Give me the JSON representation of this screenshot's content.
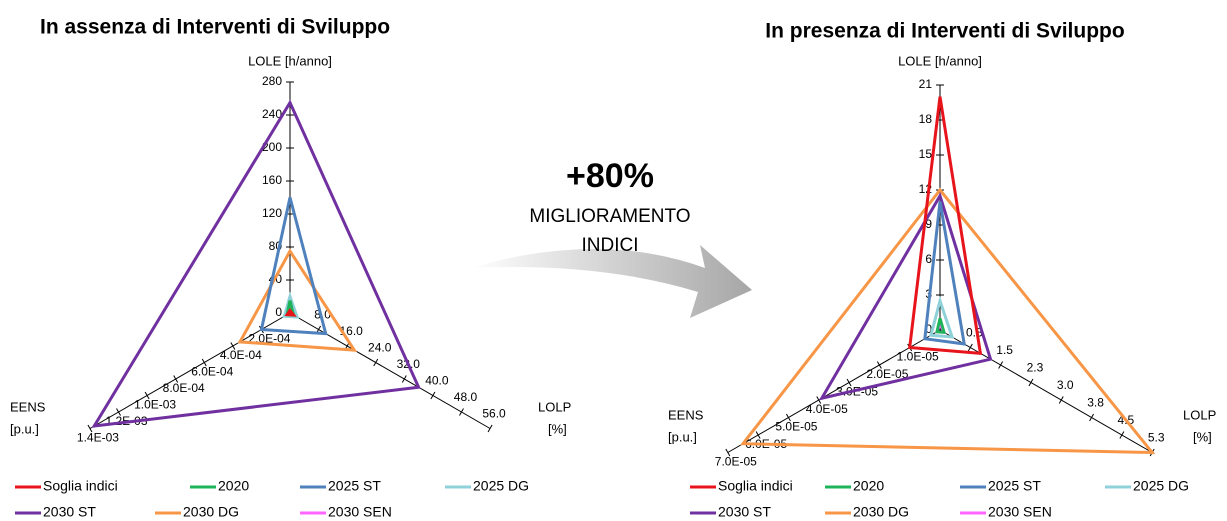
{
  "chart_data": [
    {
      "type": "radar",
      "title": "In assenza di Interventi di Sviluppo",
      "axes": [
        {
          "label": [
            "LOLE [h/anno]"
          ],
          "lim": [
            0,
            280
          ],
          "ticks": [
            0,
            40,
            80,
            120,
            160,
            200,
            240,
            280
          ]
        },
        {
          "label": [
            "LOLP",
            "[%]"
          ],
          "lim": [
            0,
            56
          ],
          "ticks": [
            {
              "value": 8,
              "label": "8.0"
            },
            {
              "value": 16,
              "label": "16.0"
            },
            {
              "value": 24,
              "label": "24.0"
            },
            {
              "value": 32,
              "label": "32.0"
            },
            {
              "value": 40,
              "label": "40.0"
            },
            {
              "value": 48,
              "label": "48.0"
            },
            {
              "value": 56,
              "label": "56.0"
            }
          ]
        },
        {
          "label": [
            "EENS",
            "[p.u.]"
          ],
          "lim": [
            0,
            0.0014
          ],
          "ticks": [
            {
              "value": 0.0002,
              "label": "2.0E-04"
            },
            {
              "value": 0.0004,
              "label": "4.0E-04"
            },
            {
              "value": 0.0006,
              "label": "6.0E-04"
            },
            {
              "value": 0.0008,
              "label": "8.0E-04"
            },
            {
              "value": 0.001,
              "label": "1.0E-03"
            },
            {
              "value": 0.0012,
              "label": "1.2E-03"
            },
            {
              "value": 0.0014,
              "label": "1.4E-03"
            }
          ]
        }
      ],
      "series": [
        {
          "name": "Soglia indici",
          "color": "#e8141c",
          "values": [
            3,
            1,
            2e-05
          ]
        },
        {
          "name": "2020",
          "color": "#1fb45a",
          "values": [
            15,
            1,
            2e-05
          ]
        },
        {
          "name": "2025 ST",
          "color": "#4f81bd",
          "values": [
            140,
            10,
            0.0002
          ]
        },
        {
          "name": "2025 DG",
          "color": "#8fd1d8",
          "values": [
            20,
            2,
            4e-05
          ]
        },
        {
          "name": "2030 ST",
          "color": "#7030a0",
          "values": [
            255,
            36,
            0.00137
          ]
        },
        {
          "name": "2030 DG",
          "color": "#f79646",
          "values": [
            75,
            18,
            0.00035
          ]
        },
        {
          "name": "2030 SEN",
          "color": "#ff66ff",
          "values": [
            8,
            1.5,
            3e-05
          ]
        }
      ]
    },
    {
      "type": "radar",
      "title": "In presenza di Interventi di Sviluppo",
      "axes": [
        {
          "label": [
            "LOLE [h/anno]"
          ],
          "lim": [
            0,
            21
          ],
          "ticks": [
            0,
            3,
            6,
            9,
            12,
            15,
            18,
            21
          ]
        },
        {
          "label": [
            "LOLP",
            "[%]"
          ],
          "lim": [
            0,
            5.25
          ],
          "ticks": [
            {
              "value": 0.75,
              "label": "0.8"
            },
            1.5,
            {
              "value": 2.25,
              "label": "2.3"
            },
            {
              "value": 3,
              "label": "3.0"
            },
            {
              "value": 3.75,
              "label": "3.8"
            },
            4.5,
            {
              "value": 5.25,
              "label": "5.3"
            }
          ]
        },
        {
          "label": [
            "EENS",
            "[p.u.]"
          ],
          "lim": [
            0,
            7e-05
          ],
          "ticks": [
            {
              "value": 1e-05,
              "label": "1.0E-05"
            },
            {
              "value": 2e-05,
              "label": "2.0E-05"
            },
            {
              "value": 3e-05,
              "label": "3.0E-05"
            },
            {
              "value": 4e-05,
              "label": "4.0E-05"
            },
            {
              "value": 5e-05,
              "label": "5.0E-05"
            },
            {
              "value": 6e-05,
              "label": "6.0E-05"
            },
            {
              "value": 7e-05,
              "label": "7.0E-05"
            }
          ]
        }
      ],
      "series": [
        {
          "name": "Soglia indici",
          "color": "#e8141c",
          "values": [
            20,
            1,
            1e-05
          ]
        },
        {
          "name": "2020",
          "color": "#1fb45a",
          "values": [
            1,
            0.1,
            1e-06
          ]
        },
        {
          "name": "2025 ST",
          "color": "#4f81bd",
          "values": [
            11,
            0.6,
            5e-06
          ]
        },
        {
          "name": "2025 DG",
          "color": "#8fd1d8",
          "values": [
            2.5,
            0.3,
            3e-06
          ]
        },
        {
          "name": "2030 ST",
          "color": "#7030a0",
          "values": [
            11.5,
            1.25,
            3.9e-05
          ]
        },
        {
          "name": "2030 DG",
          "color": "#f79646",
          "values": [
            12,
            5.25,
            6.5e-05
          ]
        },
        {
          "name": "2030 SEN",
          "color": "#ff66ff",
          "values": [
            0.5,
            0.1,
            1e-06
          ]
        }
      ]
    }
  ],
  "callout": {
    "headline": "+80%",
    "lines": [
      "MIGLIORAMENTO",
      "INDICI"
    ]
  }
}
